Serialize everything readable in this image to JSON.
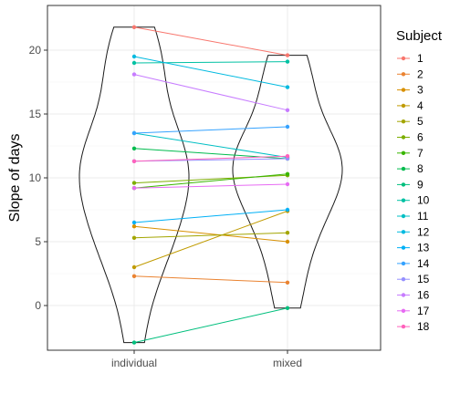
{
  "chart_data": {
    "type": "violin-paired-line",
    "xlabel": "",
    "ylabel": "Slope of days",
    "categories": [
      "individual",
      "mixed"
    ],
    "ylim": [
      -3.5,
      23.5
    ],
    "yticks": [
      0,
      5,
      10,
      15,
      20
    ],
    "grid": true,
    "legend": {
      "title": "Subject",
      "placement": "right"
    },
    "series": [
      {
        "name": "1",
        "color": "#F8766D",
        "values": [
          21.8,
          19.6
        ]
      },
      {
        "name": "2",
        "color": "#EA8331",
        "values": [
          2.3,
          1.8
        ]
      },
      {
        "name": "3",
        "color": "#D89000",
        "values": [
          6.2,
          5.0
        ]
      },
      {
        "name": "4",
        "color": "#C09B00",
        "values": [
          3.0,
          7.4
        ]
      },
      {
        "name": "5",
        "color": "#A3A500",
        "values": [
          5.3,
          5.7
        ]
      },
      {
        "name": "6",
        "color": "#7CAE00",
        "values": [
          9.6,
          10.2
        ]
      },
      {
        "name": "7",
        "color": "#39B600",
        "values": [
          9.2,
          10.3
        ]
      },
      {
        "name": "8",
        "color": "#00BB4E",
        "values": [
          12.3,
          11.5
        ]
      },
      {
        "name": "9",
        "color": "#00BF7D",
        "values": [
          -2.9,
          -0.2
        ]
      },
      {
        "name": "10",
        "color": "#00C1A3",
        "values": [
          19.0,
          19.1
        ]
      },
      {
        "name": "11",
        "color": "#00BFC4",
        "values": [
          13.5,
          11.6
        ]
      },
      {
        "name": "12",
        "color": "#00BAE0",
        "values": [
          19.5,
          17.1
        ]
      },
      {
        "name": "13",
        "color": "#00B0F6",
        "values": [
          6.5,
          7.5
        ]
      },
      {
        "name": "14",
        "color": "#35A2FF",
        "values": [
          13.5,
          14.0
        ]
      },
      {
        "name": "15",
        "color": "#9590FF",
        "values": [
          11.3,
          11.5
        ]
      },
      {
        "name": "16",
        "color": "#C77CFF",
        "values": [
          18.1,
          15.3
        ]
      },
      {
        "name": "17",
        "color": "#E76BF3",
        "values": [
          9.2,
          9.5
        ]
      },
      {
        "name": "18",
        "color": "#FF62BC",
        "values": [
          11.3,
          11.7
        ]
      }
    ]
  }
}
